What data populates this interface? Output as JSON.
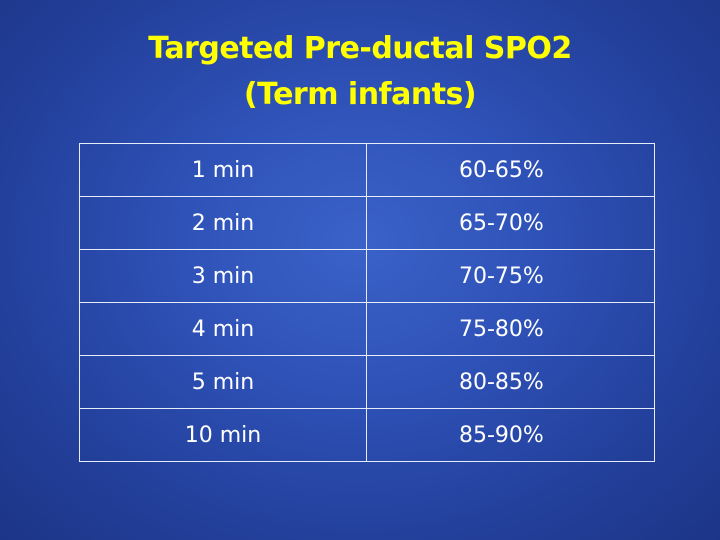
{
  "slide": {
    "title_line1": "Targeted Pre-ductal SPO2",
    "title_line2": "(Term infants)"
  },
  "table": {
    "rows": [
      {
        "time": "1 min",
        "range": "60-65%"
      },
      {
        "time": "2 min",
        "range": "65-70%"
      },
      {
        "time": "3 min",
        "range": "70-75%"
      },
      {
        "time": "4 min",
        "range": "75-80%"
      },
      {
        "time": "5 min",
        "range": "80-85%"
      },
      {
        "time": "10 min",
        "range": "85-90%"
      }
    ]
  },
  "colors": {
    "title": "#ffff00",
    "background": "#2f52b8",
    "text": "#ffffff"
  }
}
